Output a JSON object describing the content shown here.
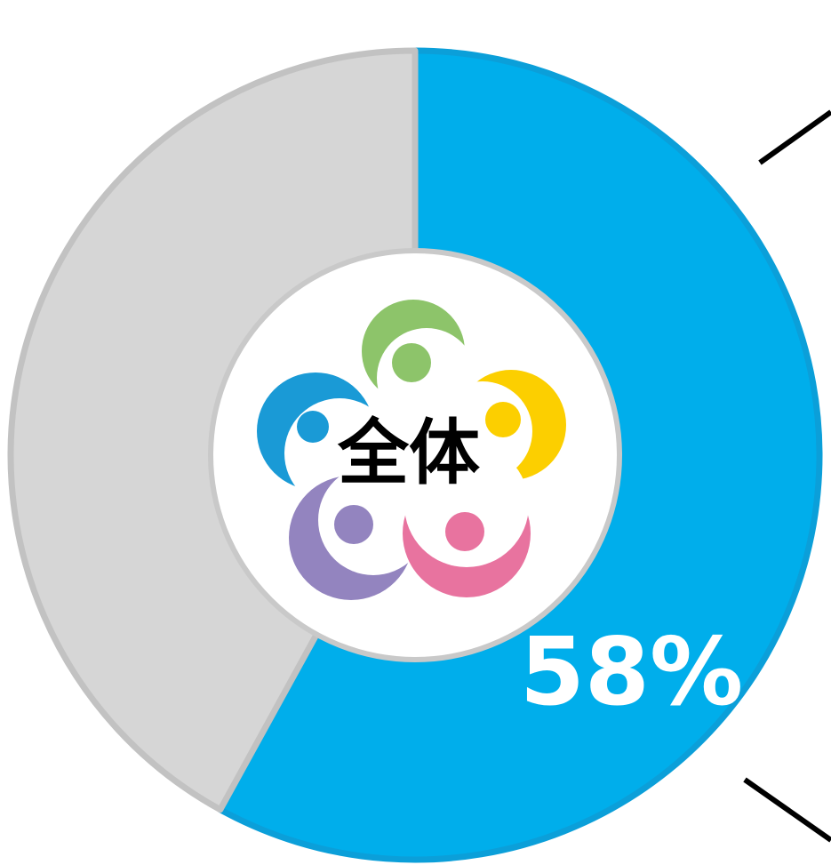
{
  "chart_data": {
    "type": "pie",
    "center_label": "全体",
    "categories": [
      null,
      null
    ],
    "values": [
      58,
      42
    ],
    "value_labels": [
      "58%",
      null
    ],
    "colors": [
      "#00aeeb",
      "#d6d6d6"
    ],
    "edge_colors": [
      "#0b9fd9",
      "#c2c2c2"
    ],
    "start": "top",
    "direction": "clockwise"
  }
}
